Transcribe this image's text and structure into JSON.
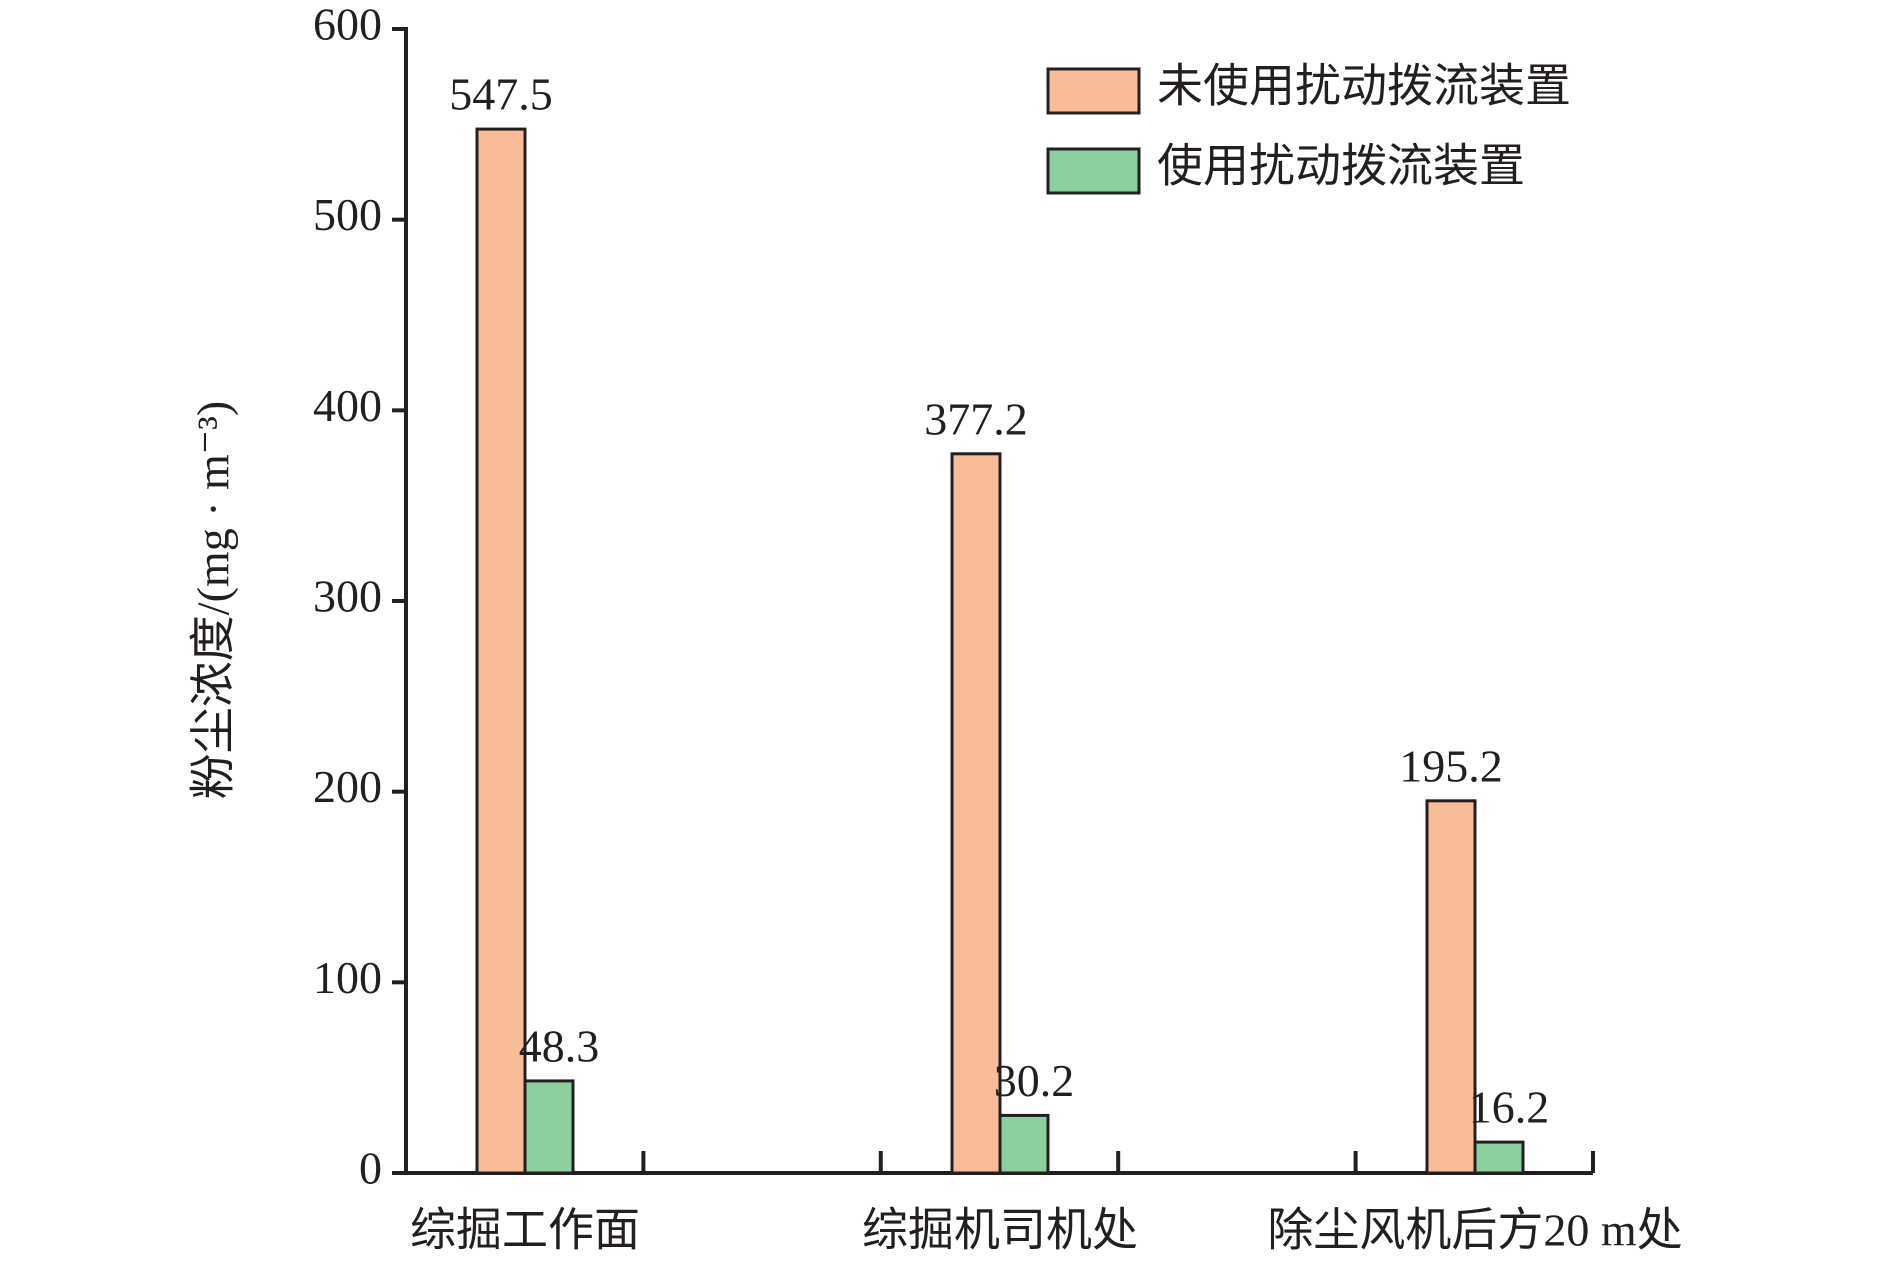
{
  "chart_data": {
    "type": "bar",
    "y_label": "粉尘浓度/(mg · m⁻³)",
    "categories": [
      "综掘工作面",
      "综掘机司机处",
      "除尘风机后方20 m处"
    ],
    "series": [
      {
        "name": "未使用扰动拨流装置",
        "color": "#f8bc98",
        "values": [
          547.5,
          377.2,
          195.2
        ]
      },
      {
        "name": "使用扰动拨流装置",
        "color": "#8ccf9e",
        "values": [
          48.3,
          30.2,
          16.2
        ]
      }
    ],
    "ylim": [
      0,
      600
    ],
    "yticks": [
      0,
      100,
      200,
      300,
      400,
      500,
      600
    ],
    "legend": "upper-right"
  }
}
